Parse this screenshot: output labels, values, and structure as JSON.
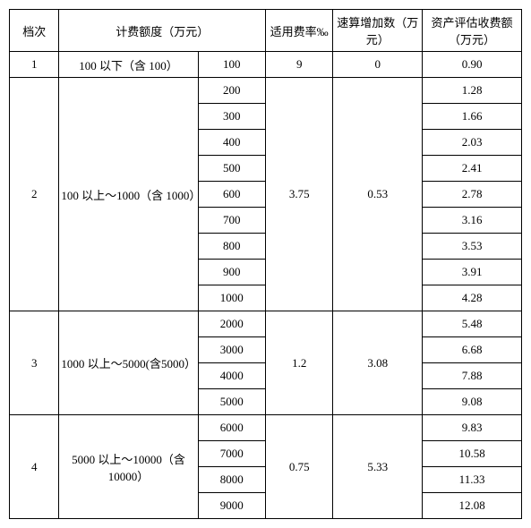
{
  "table": {
    "type": "table",
    "headers": {
      "tier": "档次",
      "billing_amount": "计费额度（万元）",
      "rate": "适用费率‰",
      "quick_add": "速算增加数（万元）",
      "fee": "资产评估收费额（万元）"
    },
    "tiers": [
      {
        "tier_num": "1",
        "range_text": "100 以下（含 100）",
        "rate": "9",
        "quick_add": "0",
        "rows": [
          {
            "amount": "100",
            "fee": "0.90"
          }
        ]
      },
      {
        "tier_num": "2",
        "range_text": "100 以上～1000（含 1000）",
        "rate": "3.75",
        "quick_add": "0.53",
        "rows": [
          {
            "amount": "200",
            "fee": "1.28"
          },
          {
            "amount": "300",
            "fee": "1.66"
          },
          {
            "amount": "400",
            "fee": "2.03"
          },
          {
            "amount": "500",
            "fee": "2.41"
          },
          {
            "amount": "600",
            "fee": "2.78"
          },
          {
            "amount": "700",
            "fee": "3.16"
          },
          {
            "amount": "800",
            "fee": "3.53"
          },
          {
            "amount": "900",
            "fee": "3.91"
          },
          {
            "amount": "1000",
            "fee": "4.28"
          }
        ]
      },
      {
        "tier_num": "3",
        "range_text": "1000 以上～5000(含5000）",
        "rate": "1.2",
        "quick_add": "3.08",
        "rows": [
          {
            "amount": "2000",
            "fee": "5.48"
          },
          {
            "amount": "3000",
            "fee": "6.68"
          },
          {
            "amount": "4000",
            "fee": "7.88"
          },
          {
            "amount": "5000",
            "fee": "9.08"
          }
        ]
      },
      {
        "tier_num": "4",
        "range_text": "5000 以上～10000（含 10000）",
        "rate": "0.75",
        "quick_add": "5.33",
        "rows": [
          {
            "amount": "6000",
            "fee": "9.83"
          },
          {
            "amount": "7000",
            "fee": "10.58"
          },
          {
            "amount": "8000",
            "fee": "11.33"
          },
          {
            "amount": "9000",
            "fee": "12.08"
          }
        ]
      }
    ]
  }
}
